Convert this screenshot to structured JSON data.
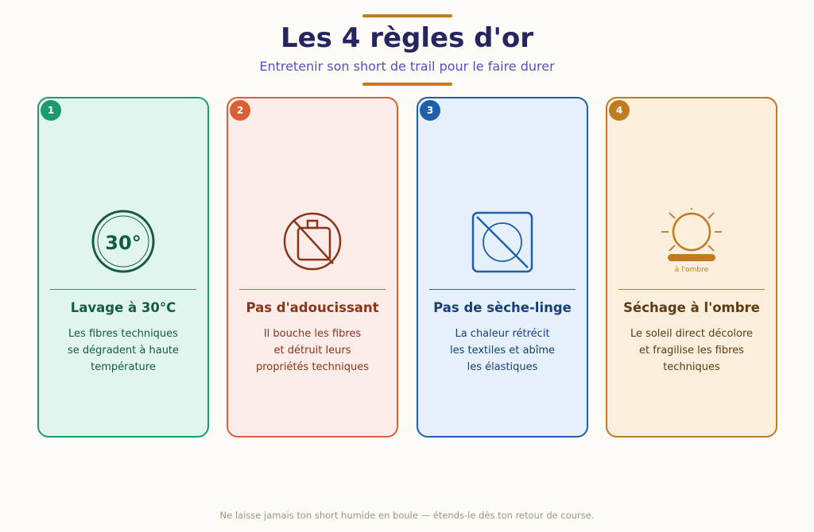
{
  "header": {
    "title": "Les 4 règles d'or",
    "subtitle": "Entretenir son short de trail pour le faire durer",
    "accent": "#c07a1f"
  },
  "cards": [
    {
      "number": "1",
      "icon": "wash-30-icon",
      "icon_text": "30°",
      "title": "Lavage à 30°C",
      "lines": [
        "Les fibres techniques",
        "se dégradent à haute",
        "température"
      ],
      "color": "#1e9b6e",
      "dark": "#145c40",
      "bg": "#e2f4ee"
    },
    {
      "number": "2",
      "icon": "no-softener-icon",
      "title": "Pas d'adoucissant",
      "lines": [
        "Il bouche les fibres",
        "et détruit leurs",
        "propriétés techniques"
      ],
      "color": "#d95f35",
      "dark": "#8a3418",
      "bg": "#faece8"
    },
    {
      "number": "3",
      "icon": "no-tumble-dry-icon",
      "title": "Pas de sèche-linge",
      "lines": [
        "La chaleur rétrécit",
        "les textiles et abîme",
        "les élastiques"
      ],
      "color": "#1e5fa8",
      "dark": "#173f78",
      "bg": "#e6f0fb"
    },
    {
      "number": "4",
      "icon": "sun-shade-icon",
      "icon_text": "à l'ombre",
      "title": "Séchage à l'ombre",
      "lines": [
        "Le soleil direct décolore",
        "et fragilise les fibres",
        "techniques"
      ],
      "color": "#c07a1f",
      "dark": "#5e3b10",
      "bg": "#faeedd"
    }
  ],
  "footer": "Ne laisse jamais ton short humide en boule — étends-le dès ton retour de course."
}
